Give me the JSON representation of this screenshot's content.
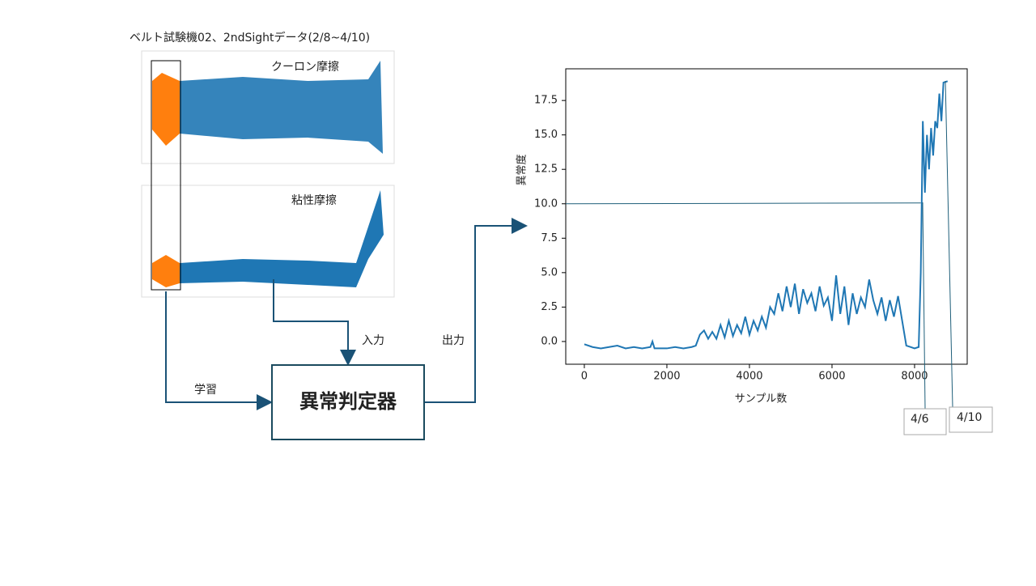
{
  "header": {
    "title": "ベルト試験機02、2ndSightデータ(2/8~4/10)"
  },
  "thumbnails": {
    "top_label": "クーロン摩擦",
    "bottom_label": "粘性摩擦"
  },
  "diagram": {
    "box": "異常判定器",
    "learn": "学習",
    "input": "入力",
    "output": "出力"
  },
  "annotations": {
    "start": "4/6",
    "end": "4/10"
  },
  "chart_data": {
    "type": "line",
    "ylabel": "異常度",
    "xlabel": "サンプル数",
    "xlim": [
      -450,
      9275
    ],
    "ylim": [
      -1.65,
      19.8
    ],
    "xticks": [
      0,
      2000,
      4000,
      6000,
      8000
    ],
    "yticks": [
      {
        "value": 0,
        "label": "0.0"
      },
      {
        "value": 2.5,
        "label": "2.5"
      },
      {
        "value": 5,
        "label": "5.0"
      },
      {
        "value": 7.5,
        "label": "7.5"
      },
      {
        "value": 10,
        "label": "10.0"
      },
      {
        "value": 12.5,
        "label": "12.5"
      },
      {
        "value": 15,
        "label": "15.0"
      },
      {
        "value": 17.5,
        "label": "17.5"
      }
    ],
    "threshold": 10,
    "series": [
      {
        "color": "#1f77b4",
        "x": [
          0,
          200,
          400,
          600,
          800,
          1000,
          1200,
          1400,
          1600,
          1650,
          1700,
          2000,
          2200,
          2400,
          2600,
          2700,
          2800,
          2900,
          3000,
          3100,
          3200,
          3300,
          3400,
          3500,
          3600,
          3700,
          3800,
          3900,
          4000,
          4100,
          4200,
          4300,
          4400,
          4500,
          4600,
          4700,
          4800,
          4900,
          5000,
          5100,
          5200,
          5300,
          5400,
          5500,
          5600,
          5700,
          5800,
          5900,
          6000,
          6100,
          6200,
          6300,
          6400,
          6500,
          6600,
          6700,
          6800,
          6900,
          7000,
          7100,
          7200,
          7300,
          7400,
          7500,
          7600,
          7700,
          7800,
          7900,
          8000,
          8100,
          8150,
          8200,
          8250,
          8300,
          8350,
          8400,
          8450,
          8500,
          8550,
          8600,
          8650,
          8700,
          8800
        ],
        "values": [
          -0.2,
          -0.4,
          -0.5,
          -0.4,
          -0.3,
          -0.5,
          -0.4,
          -0.5,
          -0.4,
          0.0,
          -0.5,
          -0.5,
          -0.4,
          -0.5,
          -0.4,
          -0.3,
          0.5,
          0.8,
          0.2,
          0.7,
          0.2,
          1.2,
          0.3,
          1.5,
          0.4,
          1.2,
          0.6,
          1.8,
          0.5,
          1.5,
          0.8,
          1.8,
          1.0,
          2.5,
          2.0,
          3.5,
          2.2,
          4.0,
          2.5,
          4.2,
          2.0,
          3.8,
          2.8,
          3.5,
          2.2,
          4.0,
          2.6,
          3.2,
          1.5,
          4.8,
          2.0,
          4.0,
          1.2,
          3.5,
          2.0,
          3.2,
          2.5,
          4.5,
          3.0,
          2.0,
          3.2,
          1.5,
          3.0,
          1.8,
          3.3,
          1.5,
          -0.3,
          -0.4,
          -0.5,
          -0.4,
          5,
          16,
          10.8,
          15,
          12.5,
          15.5,
          13.5,
          16,
          15.5,
          18,
          16,
          18.8,
          18.9
        ]
      }
    ]
  }
}
